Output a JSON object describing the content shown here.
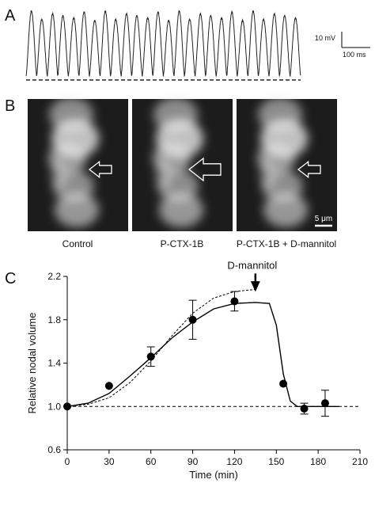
{
  "panel_a": {
    "label": "A",
    "scale_voltage": "10 mV",
    "scale_time": "100 ms"
  },
  "panel_b": {
    "label": "B",
    "captions": [
      "Control",
      "P-CTX-1B",
      "P-CTX-1B + D-mannitol"
    ],
    "scale": "5 μm"
  },
  "chart_data": {
    "type": "scatter",
    "label": "C",
    "xlabel": "Time (min)",
    "ylabel": "Relative nodal volume",
    "xlim": [
      0,
      210
    ],
    "xticks": [
      0,
      30,
      60,
      90,
      120,
      150,
      180,
      210
    ],
    "ylim": [
      0.6,
      2.2
    ],
    "yticks": [
      0.6,
      {
        "value": 1,
        "label": "1.0"
      },
      1.4,
      1.8,
      2.2
    ],
    "baseline": 1,
    "annotation": {
      "text": "D-mannitol",
      "x": 135,
      "y": 2.08
    },
    "series": [
      {
        "style": "points",
        "color": "#000000",
        "x": [
          0,
          30,
          60,
          90,
          120,
          155,
          170,
          185
        ],
        "values": [
          1.0,
          1.19,
          1.46,
          1.8,
          1.97,
          1.21,
          0.98,
          1.03
        ],
        "errors": [
          0,
          0,
          0.09,
          0.18,
          0.09,
          0,
          0.05,
          0.12
        ]
      },
      {
        "style": "solid",
        "color": "#000000",
        "x": [
          0,
          15,
          30,
          45,
          60,
          75,
          90,
          105,
          120,
          135,
          145,
          150,
          155,
          160,
          165,
          195
        ],
        "values": [
          1.0,
          1.03,
          1.12,
          1.28,
          1.45,
          1.63,
          1.78,
          1.9,
          1.95,
          1.96,
          1.95,
          1.75,
          1.3,
          1.05,
          1.0,
          1.0
        ]
      },
      {
        "style": "dashed",
        "color": "#000000",
        "x": [
          0,
          15,
          30,
          45,
          60,
          75,
          90,
          105,
          120,
          135
        ],
        "values": [
          1.0,
          1.02,
          1.08,
          1.22,
          1.42,
          1.65,
          1.86,
          2.0,
          2.06,
          2.08
        ]
      }
    ]
  }
}
